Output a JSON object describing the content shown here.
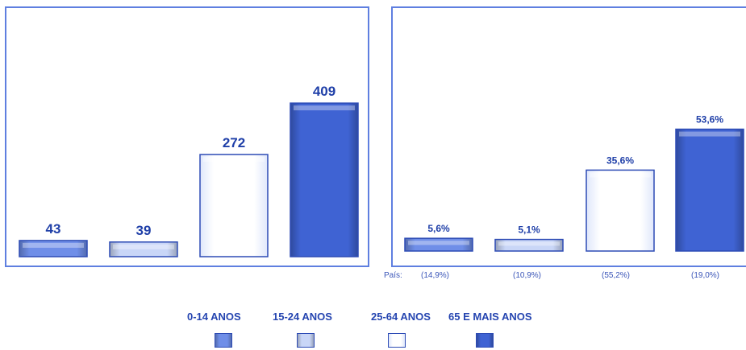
{
  "chart_data": [
    {
      "type": "bar",
      "categories": [
        "0-14 ANOS",
        "15-24 ANOS",
        "25-64 ANOS",
        "65 E MAIS ANOS"
      ],
      "values": [
        43,
        39,
        272,
        409
      ],
      "data_labels": [
        "43",
        "39",
        "272",
        "409"
      ],
      "ylim": [
        0,
        480
      ]
    },
    {
      "type": "bar",
      "categories": [
        "0-14 ANOS",
        "15-24 ANOS",
        "25-64 ANOS",
        "65 E MAIS ANOS"
      ],
      "values": [
        5.6,
        5.1,
        35.6,
        53.6
      ],
      "data_labels": [
        "5,6%",
        "5,1%",
        "35,6%",
        "53,6%"
      ],
      "country_prefix": "País:",
      "country_values": [
        "(14,9%)",
        "(10,9%)",
        "(55,2%)",
        "(19,0%)"
      ],
      "ylim": [
        0,
        63
      ]
    }
  ],
  "legend": {
    "items": [
      {
        "label": "0-14 ANOS",
        "color": "#6f8ee8"
      },
      {
        "label": "15-24 ANOS",
        "color": "#c9d6f7"
      },
      {
        "label": "25-64 ANOS",
        "color": "#ffffff"
      },
      {
        "label": "65 E MAIS ANOS",
        "color": "#3f63d3"
      }
    ]
  }
}
